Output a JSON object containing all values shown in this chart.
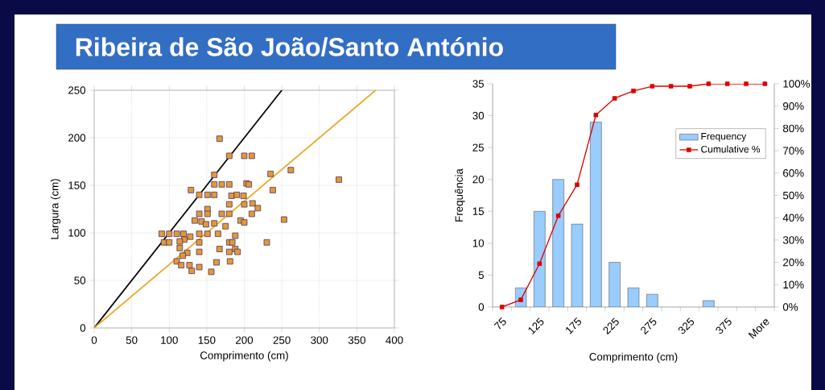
{
  "chart_data": [
    {
      "type": "scatter",
      "title": "Ribeira de São João/Santo António",
      "xlabel": "Comprimento (cm)",
      "ylabel": "Largura (cm)",
      "xlim": [
        0,
        400
      ],
      "ylim": [
        0,
        250
      ],
      "xticks": [
        0,
        50,
        100,
        150,
        200,
        250,
        300,
        350,
        400
      ],
      "yticks": [
        0,
        50,
        100,
        150,
        200,
        250
      ],
      "grid": true,
      "series": [
        {
          "type": "line",
          "color": "#000000",
          "x": [
            0,
            250
          ],
          "values": [
            0,
            250
          ]
        },
        {
          "type": "line",
          "color": "#e8a825",
          "x": [
            0,
            375
          ],
          "values": [
            0,
            250
          ]
        },
        {
          "type": "scatter",
          "color": "#e09a3a",
          "marker": "square",
          "x": [
            167,
            180,
            200,
            210,
            160,
            235,
            262,
            326,
            160,
            170,
            180,
            203,
            206,
            129,
            238,
            140,
            151,
            160,
            183,
            190,
            199,
            180,
            200,
            211,
            218,
            151,
            140,
            151,
            170,
            180,
            210,
            134,
            143,
            149,
            160,
            195,
            200,
            253,
            175,
            90,
            100,
            110,
            119,
            128,
            140,
            151,
            165,
            188,
            93,
            100,
            120,
            114,
            140,
            180,
            184,
            230,
            114,
            167,
            124,
            118,
            140,
            180,
            188,
            191,
            110,
            116,
            127,
            140,
            163,
            181,
            130,
            156
          ],
          "values": [
            199,
            181,
            181,
            181,
            161,
            162,
            166,
            156,
            151,
            151,
            151,
            152,
            151,
            145,
            145,
            140,
            140,
            140,
            139,
            140,
            139,
            130,
            130,
            131,
            126,
            125,
            120,
            120,
            120,
            120,
            120,
            113,
            112,
            109,
            110,
            113,
            111,
            114,
            107,
            99,
            99,
            99,
            99,
            96,
            99,
            99,
            99,
            97,
            90,
            90,
            93,
            91,
            90,
            90,
            90,
            90,
            84,
            83,
            79,
            76,
            80,
            80,
            83,
            80,
            70,
            66,
            66,
            64,
            69,
            70,
            60,
            59
          ]
        }
      ]
    },
    {
      "type": "bar",
      "xlabel": "Comprimento (cm)",
      "ylabel": "Frequência",
      "legend": "top right",
      "categories": [
        "75",
        null,
        "125",
        null,
        "175",
        null,
        "225",
        null,
        "275",
        null,
        "325",
        null,
        "375",
        null,
        "More"
      ],
      "ylim": [
        0,
        35
      ],
      "yticks": [
        0,
        5,
        10,
        15,
        20,
        25,
        30,
        35
      ],
      "y2lim": [
        0,
        100
      ],
      "y2ticks": [
        {
          "value": 0,
          "label": "0%"
        },
        {
          "value": 10,
          "label": "10%"
        },
        {
          "value": 20,
          "label": "20%"
        },
        {
          "value": 30,
          "label": "30%"
        },
        {
          "value": 40,
          "label": "40%"
        },
        {
          "value": 50,
          "label": "50%"
        },
        {
          "value": 60,
          "label": "60%"
        },
        {
          "value": 70,
          "label": "70%"
        },
        {
          "value": 80,
          "label": "80%"
        },
        {
          "value": 90,
          "label": "90%"
        },
        {
          "value": 100,
          "label": "100%"
        }
      ],
      "series": [
        {
          "name": "Frequency",
          "type": "bar",
          "color": "#99ccff",
          "values": [
            null,
            3,
            15,
            20,
            13,
            29,
            7,
            3,
            2,
            null,
            null,
            1,
            null,
            null,
            null
          ]
        },
        {
          "name": "Cumulative %",
          "type": "line",
          "axis": "y2",
          "color": "#e00000",
          "marker": "square",
          "values": [
            0,
            3.2,
            19.4,
            40.9,
            54.8,
            86.0,
            93.5,
            96.8,
            98.9,
            98.9,
            98.9,
            100,
            100,
            100,
            100
          ]
        }
      ]
    }
  ]
}
